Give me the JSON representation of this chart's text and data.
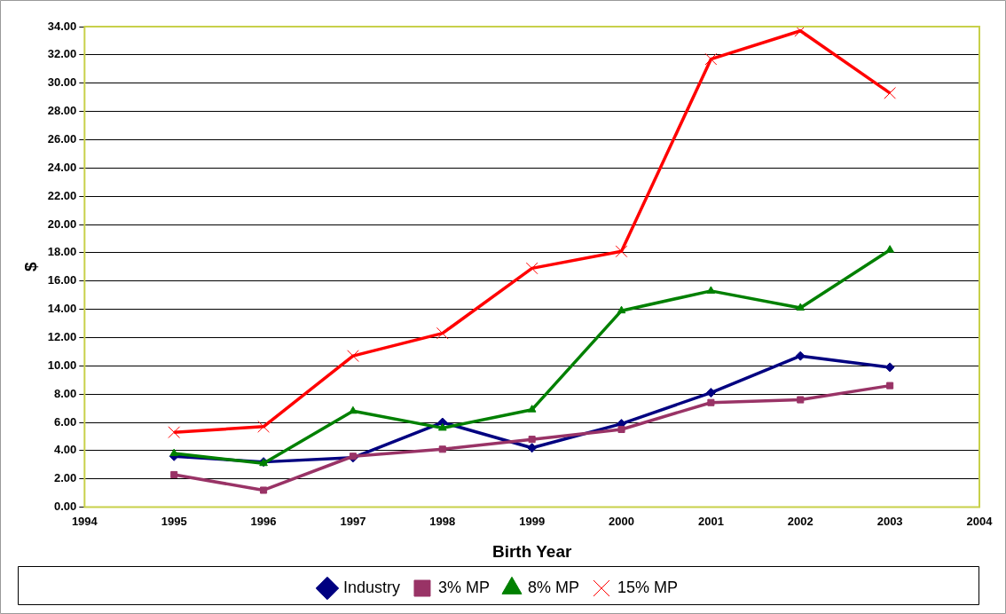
{
  "chart_data": {
    "type": "line",
    "xlabel": "Birth Year",
    "ylabel": "$",
    "x": [
      1995,
      1996,
      1997,
      1998,
      1999,
      2000,
      2001,
      2002,
      2003
    ],
    "series": [
      {
        "name": "Industry",
        "color": "#000080",
        "marker": "diamond",
        "values": [
          3.6,
          3.2,
          3.5,
          6.0,
          4.2,
          5.9,
          8.1,
          10.7,
          9.9
        ]
      },
      {
        "name": "3% MP",
        "color": "#993366",
        "marker": "square",
        "values": [
          2.3,
          1.2,
          3.6,
          4.1,
          4.8,
          5.5,
          7.4,
          7.6,
          8.6
        ]
      },
      {
        "name": "8% MP",
        "color": "#008000",
        "marker": "triangle",
        "values": [
          3.8,
          3.1,
          6.8,
          5.6,
          6.9,
          13.9,
          15.3,
          14.1,
          18.2
        ]
      },
      {
        "name": "15% MP",
        "color": "#ff0000",
        "marker": "cross",
        "values": [
          5.3,
          5.7,
          10.7,
          12.3,
          16.9,
          18.1,
          31.7,
          33.7,
          29.3
        ]
      }
    ],
    "xlim": [
      1994,
      2004
    ],
    "xticks": [
      1994,
      1995,
      1996,
      1997,
      1998,
      1999,
      2000,
      2001,
      2002,
      2003,
      2004
    ],
    "ylim": [
      0,
      34
    ],
    "yticks": [
      {
        "value": 0,
        "label": "0.00"
      },
      {
        "value": 2,
        "label": "2.00"
      },
      {
        "value": 4,
        "label": "4.00"
      },
      {
        "value": 6,
        "label": "6.00"
      },
      {
        "value": 8,
        "label": "8.00"
      },
      {
        "value": 10,
        "label": "10.00"
      },
      {
        "value": 12,
        "label": "12.00"
      },
      {
        "value": 14,
        "label": "14.00"
      },
      {
        "value": 16,
        "label": "16.00"
      },
      {
        "value": 18,
        "label": "18.00"
      },
      {
        "value": 20,
        "label": "20.00"
      },
      {
        "value": 22,
        "label": "22.00"
      },
      {
        "value": 24,
        "label": "24.00"
      },
      {
        "value": 26,
        "label": "26.00"
      },
      {
        "value": 28,
        "label": "28.00"
      },
      {
        "value": 30,
        "label": "30.00"
      },
      {
        "value": 32,
        "label": "32.00"
      },
      {
        "value": 34,
        "label": "34.00"
      }
    ],
    "grid": "y",
    "legend": "bottom",
    "line_style": "solid"
  }
}
